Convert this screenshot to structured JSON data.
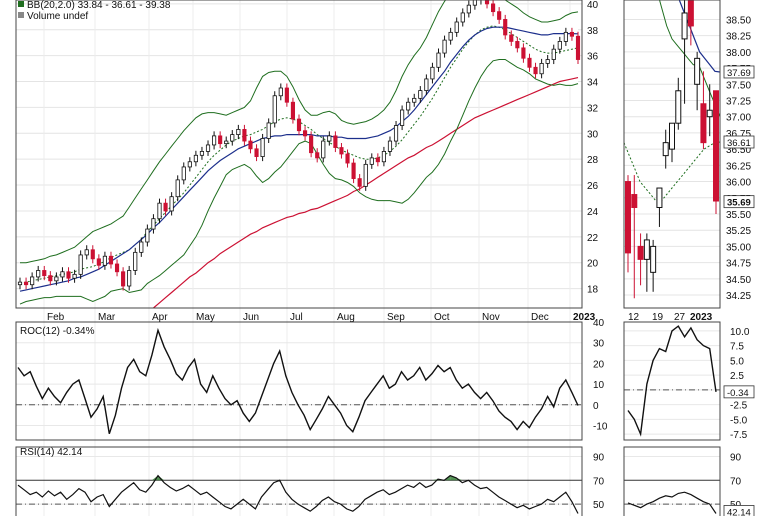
{
  "chart_data": {
    "type": "line",
    "price_panel": {
      "legend_bb": "BB(20,2.0) 33.84 - 36.61 - 39.38",
      "legend_volume": "Volume undef",
      "ylim": [
        16.5,
        40.3
      ],
      "yticks": [
        "18",
        "20",
        "22",
        "24",
        "26",
        "28",
        "30",
        "32",
        "34",
        "36",
        "38",
        "40"
      ],
      "xticks": [
        "Feb",
        "Mar",
        "Apr",
        "May",
        "Jun",
        "Jul",
        "Aug",
        "Sep",
        "Oct",
        "Nov",
        "Dec",
        "2023"
      ],
      "close": [
        18.5,
        18.3,
        18.9,
        19.4,
        19.0,
        18.6,
        18.9,
        19.3,
        18.8,
        19.1,
        20.6,
        21.0,
        20.3,
        19.8,
        20.5,
        19.9,
        19.3,
        18.2,
        19.4,
        20.8,
        21.6,
        22.6,
        23.4,
        24.6,
        24.0,
        25.1,
        26.4,
        27.4,
        27.8,
        28.3,
        28.6,
        29.1,
        29.8,
        29.2,
        29.4,
        29.9,
        30.3,
        29.4,
        28.8,
        28.2,
        29.6,
        30.8,
        32.9,
        33.5,
        32.4,
        31.1,
        30.2,
        29.8,
        28.5,
        28.1,
        29.4,
        29.8,
        28.9,
        28.4,
        27.7,
        26.5,
        25.9,
        27.6,
        28.1,
        27.8,
        28.6,
        29.4,
        30.6,
        31.8,
        32.4,
        32.7,
        33.3,
        34.2,
        35.1,
        36.2,
        37.2,
        37.8,
        38.6,
        39.3,
        39.9,
        40.3,
        40.6,
        40.0,
        39.4,
        38.8,
        37.6,
        37.1,
        36.6,
        35.8,
        35.1,
        34.6,
        35.4,
        35.7,
        36.5,
        37.1,
        37.8,
        37.5,
        35.7
      ],
      "bb_upper": [
        20.0,
        20.0,
        20.1,
        20.2,
        20.3,
        20.5,
        20.6,
        20.8,
        21.0,
        21.2,
        21.6,
        22.0,
        22.4,
        22.6,
        22.8,
        23.0,
        23.3,
        23.6,
        24.3,
        25.0,
        25.7,
        26.4,
        27.1,
        27.8,
        28.4,
        29.0,
        29.6,
        30.2,
        30.7,
        31.2,
        31.5,
        31.6,
        31.6,
        31.5,
        31.4,
        31.6,
        31.8,
        32.0,
        32.5,
        33.5,
        34.4,
        34.7,
        34.8,
        34.8,
        34.4,
        33.6,
        32.6,
        31.8,
        31.4,
        31.4,
        31.6,
        31.7,
        31.5,
        31.0,
        30.8,
        30.7,
        30.8,
        30.9,
        31.1,
        31.4,
        31.8,
        32.4,
        33.3,
        34.4,
        35.3,
        36.0,
        36.6,
        37.4,
        38.4,
        39.4,
        40.2,
        40.8,
        41.3,
        41.6,
        41.7,
        41.7,
        41.6,
        41.3,
        41.0,
        40.7,
        40.3,
        40.0,
        39.7,
        39.3,
        39.0,
        38.8,
        38.6,
        38.6,
        38.7,
        38.8,
        39.1,
        39.3,
        39.38
      ],
      "bb_middle": [
        18.4,
        18.5,
        18.6,
        18.7,
        18.8,
        18.9,
        19.0,
        19.1,
        19.2,
        19.3,
        19.5,
        19.6,
        19.7,
        19.9,
        20.1,
        20.4,
        20.6,
        20.8,
        21.0,
        21.4,
        21.8,
        22.4,
        22.9,
        23.4,
        23.9,
        24.4,
        24.9,
        25.4,
        26.0,
        26.6,
        27.2,
        27.8,
        28.3,
        28.7,
        29.1,
        29.4,
        29.6,
        29.8,
        29.9,
        30.1,
        30.3,
        30.6,
        30.9,
        31.1,
        31.2,
        31.1,
        30.9,
        30.6,
        30.3,
        29.9,
        29.6,
        29.3,
        29.0,
        28.7,
        28.5,
        28.3,
        28.1,
        28.0,
        28.0,
        28.1,
        28.3,
        28.6,
        29.0,
        29.5,
        30.1,
        30.7,
        31.3,
        32.0,
        32.7,
        33.5,
        34.3,
        35.1,
        35.8,
        36.5,
        37.1,
        37.6,
        38.0,
        38.2,
        38.3,
        38.2,
        38.0,
        37.7,
        37.4,
        37.1,
        36.8,
        36.5,
        36.3,
        36.2,
        36.2,
        36.3,
        36.4,
        36.5,
        36.61
      ],
      "bb_lower": [
        16.8,
        17.0,
        17.1,
        17.2,
        17.3,
        17.3,
        17.4,
        17.4,
        17.4,
        17.4,
        17.4,
        17.2,
        17.0,
        17.2,
        17.4,
        17.8,
        17.9,
        18.0,
        17.7,
        17.8,
        17.9,
        18.4,
        18.7,
        19.0,
        19.4,
        19.8,
        20.2,
        20.6,
        21.3,
        22.0,
        22.9,
        24.0,
        25.0,
        25.9,
        26.8,
        27.2,
        27.4,
        27.6,
        27.3,
        26.7,
        26.2,
        26.5,
        27.0,
        27.4,
        28.0,
        28.6,
        29.2,
        29.4,
        29.2,
        28.4,
        27.6,
        26.9,
        26.5,
        26.4,
        26.2,
        25.9,
        25.4,
        25.1,
        24.9,
        24.8,
        24.8,
        24.8,
        24.7,
        24.6,
        24.9,
        25.4,
        26.0,
        26.6,
        27.0,
        27.6,
        28.4,
        29.4,
        30.3,
        31.4,
        32.5,
        33.5,
        34.4,
        35.1,
        35.6,
        35.7,
        35.7,
        35.4,
        35.1,
        34.9,
        34.6,
        34.2,
        34.0,
        33.8,
        33.7,
        33.8,
        33.7,
        33.7,
        33.84
      ],
      "ma50": [
        17.8,
        17.9,
        18.0,
        18.1,
        18.2,
        18.3,
        18.4,
        18.5,
        18.6,
        18.8,
        18.9,
        19.1,
        19.3,
        19.5,
        19.8,
        20.1,
        20.4,
        20.7,
        21.0,
        21.4,
        21.8,
        22.2,
        22.7,
        23.1,
        23.6,
        24.1,
        24.6,
        25.1,
        25.6,
        26.1,
        26.6,
        27.1,
        27.5,
        27.9,
        28.2,
        28.5,
        28.8,
        29.0,
        29.2,
        29.4,
        29.6,
        29.7,
        29.8,
        29.8,
        29.9,
        29.9,
        29.9,
        29.9,
        29.9,
        29.8,
        29.8,
        29.8,
        29.7,
        29.7,
        29.6,
        29.6,
        29.6,
        29.6,
        29.7,
        29.8,
        30.0,
        30.2,
        30.5,
        30.9,
        31.3,
        31.8,
        32.4,
        33.0,
        33.6,
        34.2,
        34.8,
        35.5,
        36.1,
        36.7,
        37.2,
        37.6,
        37.9,
        38.1,
        38.2,
        38.2,
        38.2,
        38.1,
        38.0,
        37.9,
        37.8,
        37.7,
        37.6,
        37.6,
        37.7,
        37.7,
        37.7,
        37.7,
        37.69
      ],
      "ma200": [
        null,
        null,
        null,
        null,
        null,
        null,
        null,
        null,
        null,
        null,
        null,
        null,
        null,
        null,
        null,
        null,
        null,
        null,
        null,
        null,
        null,
        null,
        16.5,
        16.9,
        17.3,
        17.7,
        18.1,
        18.5,
        18.9,
        19.2,
        19.6,
        20.0,
        20.3,
        20.7,
        21.0,
        21.3,
        21.6,
        21.9,
        22.2,
        22.4,
        22.7,
        22.9,
        23.1,
        23.3,
        23.5,
        23.6,
        23.8,
        23.9,
        24.1,
        24.2,
        24.4,
        24.6,
        24.8,
        25.0,
        25.2,
        25.5,
        25.7,
        26.0,
        26.3,
        26.6,
        26.9,
        27.2,
        27.5,
        27.8,
        28.1,
        28.3,
        28.6,
        28.9,
        29.1,
        29.4,
        29.7,
        30.0,
        30.3,
        30.6,
        30.9,
        31.2,
        31.4,
        31.6,
        31.8,
        32.0,
        32.2,
        32.4,
        32.6,
        32.8,
        33.0,
        33.2,
        33.4,
        33.6,
        33.8,
        34.0,
        34.1,
        34.2,
        34.3
      ]
    },
    "zoom_panel": {
      "ylim": [
        34.05,
        38.8
      ],
      "yticks": [
        "34.25",
        "34.50",
        "34.75",
        "35.00",
        "35.25",
        "35.50",
        "35.75",
        "36.00",
        "36.25",
        "36.50",
        "36.75",
        "37.00",
        "37.25",
        "37.50",
        "37.75",
        "38.00",
        "38.25",
        "38.50"
      ],
      "xticks": [
        "12",
        "19",
        "27",
        "2023"
      ],
      "candles": [
        {
          "o": 36.0,
          "h": 36.1,
          "l": 34.6,
          "c": 34.9
        },
        {
          "o": 35.8,
          "h": 36.1,
          "l": 34.2,
          "c": 35.6
        },
        {
          "o": 35.0,
          "h": 35.2,
          "l": 34.4,
          "c": 34.8
        },
        {
          "o": 34.8,
          "h": 35.2,
          "l": 34.3,
          "c": 35.1
        },
        {
          "o": 34.6,
          "h": 35.1,
          "l": 34.3,
          "c": 35.0
        },
        {
          "o": 35.6,
          "h": 35.9,
          "l": 35.3,
          "c": 35.9
        },
        {
          "o": 36.4,
          "h": 36.8,
          "l": 36.2,
          "c": 36.6
        },
        {
          "o": 36.5,
          "h": 36.9,
          "l": 36.3,
          "c": 36.9
        },
        {
          "o": 36.9,
          "h": 37.6,
          "l": 36.8,
          "c": 37.4
        },
        {
          "o": 38.2,
          "h": 38.8,
          "l": 37.2,
          "c": 38.6
        },
        {
          "o": 38.8,
          "h": 38.8,
          "l": 38.1,
          "c": 38.4
        },
        {
          "o": 37.5,
          "h": 38.0,
          "l": 37.1,
          "c": 37.9
        },
        {
          "o": 37.2,
          "h": 37.7,
          "l": 36.5,
          "c": 36.6
        },
        {
          "o": 37.0,
          "h": 37.5,
          "l": 36.7,
          "c": 37.1
        },
        {
          "o": 37.4,
          "h": 37.4,
          "l": 35.5,
          "c": 35.7
        }
      ],
      "bb_upper": [
        40.2,
        40.4,
        40.5,
        40.2,
        39.8,
        39.4,
        39.0,
        38.7,
        38.4,
        38.2,
        38.1,
        38.0,
        37.9,
        37.8,
        37.8,
        37.6,
        37.4,
        37.2,
        37.0
      ],
      "bb_middle": [
        36.6,
        36.4,
        36.2,
        36.0,
        35.9,
        35.8,
        35.7,
        35.7,
        35.8,
        35.9,
        36.0,
        36.1,
        36.2,
        36.3,
        36.4,
        36.5,
        36.55,
        36.6,
        36.61
      ],
      "ma50": [
        39.4,
        39.2,
        39.0,
        38.8,
        38.6,
        38.4,
        38.2,
        38.0,
        37.9,
        37.8,
        37.7,
        37.69
      ]
    },
    "roc_panel": {
      "legend": "ROC(12) -0.34%",
      "ylim": [
        -17,
        40
      ],
      "yticks": [
        "-10",
        "0",
        "10",
        "20",
        "30",
        "40"
      ],
      "zoom_yticks": [
        "-7.5",
        "-5.0",
        "-2.5",
        "0",
        "2.5",
        "5.0",
        "7.5",
        "10.0"
      ],
      "zoom_ylim": [
        -8.5,
        11.5
      ],
      "values": [
        18,
        14,
        16,
        9,
        3,
        8,
        4,
        1,
        6,
        10,
        12,
        3,
        -6,
        -2,
        4,
        -14,
        -5,
        8,
        18,
        22,
        16,
        14,
        24,
        36,
        28,
        22,
        15,
        12,
        18,
        22,
        10,
        6,
        14,
        8,
        3,
        0,
        2,
        -4,
        -8,
        -4,
        4,
        12,
        20,
        26,
        14,
        6,
        0,
        -5,
        -12,
        -7,
        -2,
        4,
        0,
        -4,
        -10,
        -13,
        -6,
        2,
        6,
        10,
        14,
        8,
        10,
        16,
        12,
        14,
        18,
        12,
        15,
        19,
        16,
        18,
        12,
        8,
        10,
        6,
        3,
        6,
        2,
        -3,
        -6,
        -8,
        -12,
        -8,
        -11,
        -6,
        -2,
        4,
        -1,
        8,
        12,
        6,
        -0.34
      ],
      "zoom_values": [
        -3.5,
        -5.0,
        -7.5,
        1.0,
        5.0,
        7.0,
        6.5,
        10.0,
        10.8,
        9.0,
        10.5,
        8.5,
        7.5,
        7.0,
        -0.34
      ]
    },
    "rsi_panel": {
      "legend": "RSI(14) 42.14",
      "ylim": [
        40,
        98
      ],
      "yticks": [
        "50",
        "70",
        "90"
      ],
      "overbought": 70,
      "oversold": 30,
      "values": [
        66,
        62,
        58,
        60,
        56,
        61,
        57,
        60,
        54,
        58,
        63,
        60,
        52,
        56,
        58,
        48,
        54,
        60,
        64,
        68,
        62,
        60,
        66,
        74,
        68,
        64,
        61,
        63,
        66,
        62,
        58,
        60,
        56,
        52,
        48,
        46,
        50,
        54,
        50,
        46,
        56,
        62,
        68,
        70,
        60,
        54,
        50,
        47,
        44,
        48,
        53,
        56,
        52,
        50,
        46,
        44,
        48,
        54,
        57,
        60,
        62,
        58,
        60,
        63,
        66,
        64,
        68,
        64,
        66,
        71,
        70,
        74,
        72,
        68,
        70,
        66,
        63,
        64,
        60,
        56,
        53,
        50,
        47,
        49,
        46,
        48,
        50,
        54,
        52,
        56,
        60,
        52,
        42.14
      ],
      "zoom_values": [
        51,
        49,
        47,
        50,
        52,
        55,
        57,
        56,
        59,
        60,
        58,
        55,
        52,
        50,
        42.14
      ]
    },
    "badges": {
      "ma50": "37.69",
      "bb_mid": "36.61",
      "close": "35.69",
      "roc": "-0.34",
      "rsi": "42.14"
    },
    "colors": {
      "bb": "#1f6e1f",
      "ma50": "#1c2f8c",
      "ma200": "#cc1133",
      "bear": "#cc1133",
      "bull": "#111111",
      "rsi_fill": "#2d7a2d"
    }
  }
}
